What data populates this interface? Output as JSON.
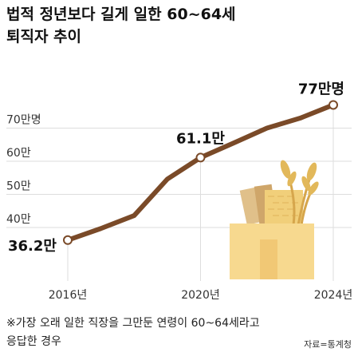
{
  "title_lines": [
    "법적 정년보다 길게 일한 60~64세",
    "퇴직자 추이"
  ],
  "footnote_lines": [
    "※가장 오래 일한 직장을 그만둔 연령이 60~64세라고",
    "응답한 경우"
  ],
  "source": "자료=통계청",
  "colors": {
    "line": "#7a4a28",
    "grid": "#dddddd",
    "axis_text": "#333333"
  },
  "chart_data": {
    "type": "line",
    "title": "법적 정년보다 길게 일한 60~64세 퇴직자 추이",
    "x_ticks": [
      "2016년",
      "2020년",
      "2024년"
    ],
    "y_ticks": [
      "40만",
      "50만",
      "60만",
      "70만명"
    ],
    "ylim": [
      33,
      80
    ],
    "grid": true,
    "x": [
      2016,
      2017,
      2018,
      2019,
      2020,
      2021,
      2022,
      2023,
      2024
    ],
    "values": [
      36.2,
      39.7,
      43.6,
      54.6,
      61.1,
      65.5,
      70.0,
      73.0,
      77.0
    ],
    "data_labels": [
      {
        "index": 0,
        "text": "36.2만"
      },
      {
        "index": 4,
        "text": "61.1만"
      },
      {
        "index": 8,
        "text": "77만명"
      }
    ]
  },
  "illustration": {
    "name": "grain-sack-illustration"
  }
}
